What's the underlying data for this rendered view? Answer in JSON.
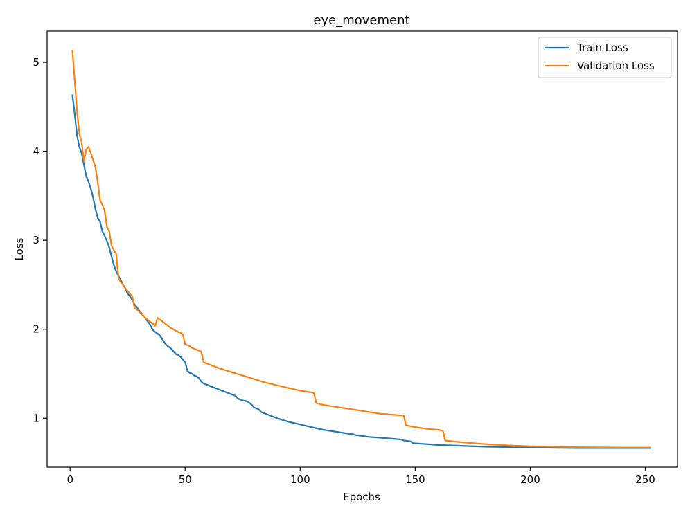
{
  "chart_data": {
    "type": "line",
    "title": "eye_movement",
    "xlabel": "Epochs",
    "ylabel": "Loss",
    "xlim": [
      -10,
      264
    ],
    "ylim": [
      0.45,
      5.35
    ],
    "xticks": [
      0,
      50,
      100,
      150,
      200,
      250
    ],
    "yticks": [
      1,
      2,
      3,
      4,
      5
    ],
    "grid": false,
    "legend": "top-right",
    "series": [
      {
        "name": "Train Loss",
        "color": "#1f77b4",
        "points": [
          [
            1,
            4.63
          ],
          [
            2,
            4.42
          ],
          [
            3,
            4.18
          ],
          [
            4,
            4.05
          ],
          [
            5,
            3.98
          ],
          [
            6,
            3.85
          ],
          [
            7,
            3.72
          ],
          [
            8,
            3.66
          ],
          [
            9,
            3.58
          ],
          [
            10,
            3.48
          ],
          [
            11,
            3.35
          ],
          [
            12,
            3.25
          ],
          [
            13,
            3.21
          ],
          [
            14,
            3.1
          ],
          [
            15,
            3.05
          ],
          [
            16,
            2.99
          ],
          [
            17,
            2.92
          ],
          [
            18,
            2.82
          ],
          [
            19,
            2.72
          ],
          [
            20,
            2.65
          ],
          [
            21,
            2.6
          ],
          [
            22,
            2.55
          ],
          [
            23,
            2.5
          ],
          [
            24,
            2.46
          ],
          [
            25,
            2.4
          ],
          [
            26,
            2.37
          ],
          [
            27,
            2.33
          ],
          [
            28,
            2.28
          ],
          [
            29,
            2.25
          ],
          [
            30,
            2.21
          ],
          [
            31,
            2.18
          ],
          [
            32,
            2.15
          ],
          [
            33,
            2.11
          ],
          [
            34,
            2.08
          ],
          [
            35,
            2.04
          ],
          [
            36,
            1.99
          ],
          [
            37,
            1.97
          ],
          [
            38,
            1.95
          ],
          [
            39,
            1.93
          ],
          [
            40,
            1.89
          ],
          [
            41,
            1.85
          ],
          [
            42,
            1.82
          ],
          [
            43,
            1.8
          ],
          [
            44,
            1.78
          ],
          [
            45,
            1.75
          ],
          [
            46,
            1.72
          ],
          [
            47,
            1.71
          ],
          [
            48,
            1.69
          ],
          [
            49,
            1.66
          ],
          [
            50,
            1.63
          ],
          [
            51,
            1.53
          ],
          [
            52,
            1.51
          ],
          [
            53,
            1.5
          ],
          [
            54,
            1.48
          ],
          [
            55,
            1.47
          ],
          [
            56,
            1.45
          ],
          [
            57,
            1.41
          ],
          [
            58,
            1.39
          ],
          [
            60,
            1.37
          ],
          [
            62,
            1.35
          ],
          [
            64,
            1.33
          ],
          [
            66,
            1.31
          ],
          [
            68,
            1.29
          ],
          [
            70,
            1.27
          ],
          [
            72,
            1.25
          ],
          [
            73,
            1.22
          ],
          [
            75,
            1.2
          ],
          [
            77,
            1.19
          ],
          [
            78,
            1.17
          ],
          [
            79,
            1.15
          ],
          [
            80,
            1.12
          ],
          [
            81,
            1.11
          ],
          [
            82,
            1.1
          ],
          [
            83,
            1.07
          ],
          [
            85,
            1.05
          ],
          [
            90,
            1.0
          ],
          [
            95,
            0.96
          ],
          [
            100,
            0.93
          ],
          [
            105,
            0.9
          ],
          [
            110,
            0.87
          ],
          [
            115,
            0.85
          ],
          [
            120,
            0.83
          ],
          [
            123,
            0.82
          ],
          [
            124,
            0.81
          ],
          [
            130,
            0.79
          ],
          [
            135,
            0.78
          ],
          [
            140,
            0.77
          ],
          [
            144,
            0.76
          ],
          [
            145,
            0.75
          ],
          [
            148,
            0.74
          ],
          [
            149,
            0.72
          ],
          [
            160,
            0.7
          ],
          [
            170,
            0.69
          ],
          [
            180,
            0.68
          ],
          [
            200,
            0.67
          ],
          [
            220,
            0.665
          ],
          [
            240,
            0.665
          ],
          [
            252,
            0.665
          ]
        ]
      },
      {
        "name": "Validation Loss",
        "color": "#ff7f0e",
        "points": [
          [
            1,
            5.13
          ],
          [
            2,
            4.8
          ],
          [
            3,
            4.45
          ],
          [
            4,
            4.2
          ],
          [
            5,
            4.1
          ],
          [
            6,
            3.89
          ],
          [
            7,
            4.02
          ],
          [
            8,
            4.05
          ],
          [
            9,
            3.98
          ],
          [
            10,
            3.9
          ],
          [
            11,
            3.82
          ],
          [
            12,
            3.65
          ],
          [
            13,
            3.45
          ],
          [
            14,
            3.4
          ],
          [
            15,
            3.33
          ],
          [
            16,
            3.15
          ],
          [
            17,
            3.1
          ],
          [
            18,
            2.94
          ],
          [
            19,
            2.89
          ],
          [
            20,
            2.85
          ],
          [
            21,
            2.58
          ],
          [
            22,
            2.53
          ],
          [
            23,
            2.5
          ],
          [
            24,
            2.46
          ],
          [
            25,
            2.43
          ],
          [
            26,
            2.4
          ],
          [
            27,
            2.37
          ],
          [
            28,
            2.24
          ],
          [
            29,
            2.22
          ],
          [
            30,
            2.2
          ],
          [
            31,
            2.17
          ],
          [
            32,
            2.15
          ],
          [
            33,
            2.12
          ],
          [
            34,
            2.1
          ],
          [
            35,
            2.08
          ],
          [
            36,
            2.06
          ],
          [
            37,
            2.04
          ],
          [
            38,
            2.13
          ],
          [
            39,
            2.11
          ],
          [
            40,
            2.09
          ],
          [
            41,
            2.07
          ],
          [
            42,
            2.05
          ],
          [
            43,
            2.03
          ],
          [
            44,
            2.01
          ],
          [
            45,
            2.0
          ],
          [
            46,
            1.98
          ],
          [
            47,
            1.97
          ],
          [
            48,
            1.96
          ],
          [
            49,
            1.94
          ],
          [
            50,
            1.83
          ],
          [
            51,
            1.82
          ],
          [
            52,
            1.81
          ],
          [
            53,
            1.79
          ],
          [
            54,
            1.78
          ],
          [
            55,
            1.77
          ],
          [
            56,
            1.76
          ],
          [
            57,
            1.75
          ],
          [
            58,
            1.63
          ],
          [
            60,
            1.61
          ],
          [
            62,
            1.59
          ],
          [
            65,
            1.56
          ],
          [
            70,
            1.52
          ],
          [
            75,
            1.48
          ],
          [
            80,
            1.44
          ],
          [
            85,
            1.4
          ],
          [
            90,
            1.37
          ],
          [
            95,
            1.34
          ],
          [
            100,
            1.31
          ],
          [
            105,
            1.29
          ],
          [
            106,
            1.28
          ],
          [
            107,
            1.17
          ],
          [
            110,
            1.15
          ],
          [
            115,
            1.13
          ],
          [
            120,
            1.11
          ],
          [
            125,
            1.09
          ],
          [
            130,
            1.07
          ],
          [
            135,
            1.05
          ],
          [
            140,
            1.04
          ],
          [
            145,
            1.03
          ],
          [
            146,
            0.92
          ],
          [
            150,
            0.9
          ],
          [
            155,
            0.88
          ],
          [
            160,
            0.87
          ],
          [
            162,
            0.86
          ],
          [
            163,
            0.75
          ],
          [
            170,
            0.73
          ],
          [
            180,
            0.71
          ],
          [
            190,
            0.695
          ],
          [
            200,
            0.685
          ],
          [
            210,
            0.68
          ],
          [
            220,
            0.675
          ],
          [
            230,
            0.672
          ],
          [
            240,
            0.67
          ],
          [
            252,
            0.67
          ]
        ]
      }
    ]
  }
}
